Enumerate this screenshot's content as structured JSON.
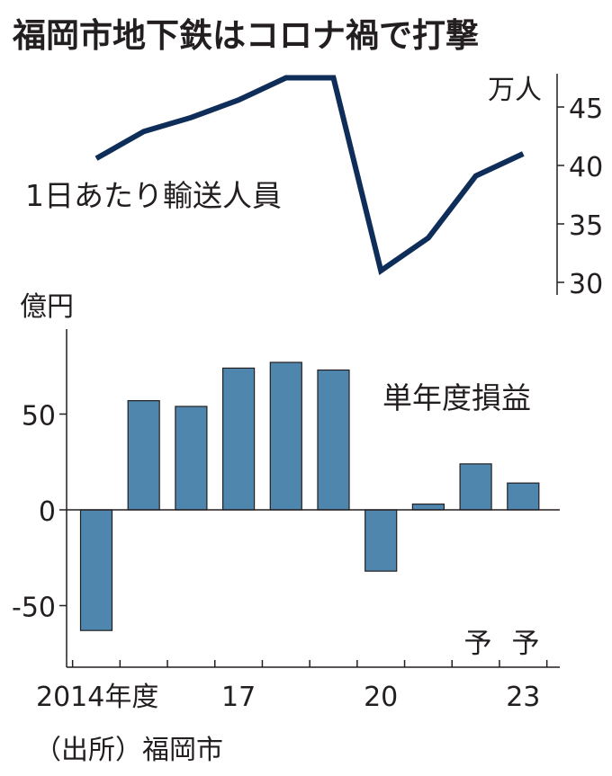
{
  "chart_data": [
    {
      "type": "line",
      "title": "福岡市地下鉄はコロナ禍で打撃",
      "label": "1日あたり輸送人員",
      "unit": "万人",
      "x": [
        "2014",
        "2015",
        "2016",
        "2017",
        "2018",
        "2019",
        "2020",
        "2021",
        "2022",
        "2023"
      ],
      "values": [
        40.6,
        42.9,
        44.1,
        45.6,
        47.5,
        47.5,
        31.0,
        33.8,
        39.1,
        41.0
      ],
      "ylim": [
        30,
        48
      ],
      "y_ticks": [
        "30",
        "35",
        "40",
        "45"
      ],
      "color": "#0f2d59",
      "axis_side": "right"
    },
    {
      "type": "bar",
      "label": "単年度損益",
      "unit": "億円",
      "x": [
        "2014",
        "2015",
        "2016",
        "2017",
        "2018",
        "2019",
        "2020",
        "2021",
        "2022",
        "2023"
      ],
      "values": [
        -63,
        57,
        54,
        74,
        77,
        73,
        -32,
        3,
        24,
        14
      ],
      "ylim": [
        -80,
        90
      ],
      "y_ticks": [
        "50",
        "0",
        "-50"
      ],
      "x_tick_labels": [
        "2014年度",
        "17",
        "20",
        "23"
      ],
      "forecast_marks": [
        "予",
        "予"
      ],
      "color": "#4f86ad",
      "axis_side": "left"
    }
  ],
  "source": "（出所）福岡市"
}
